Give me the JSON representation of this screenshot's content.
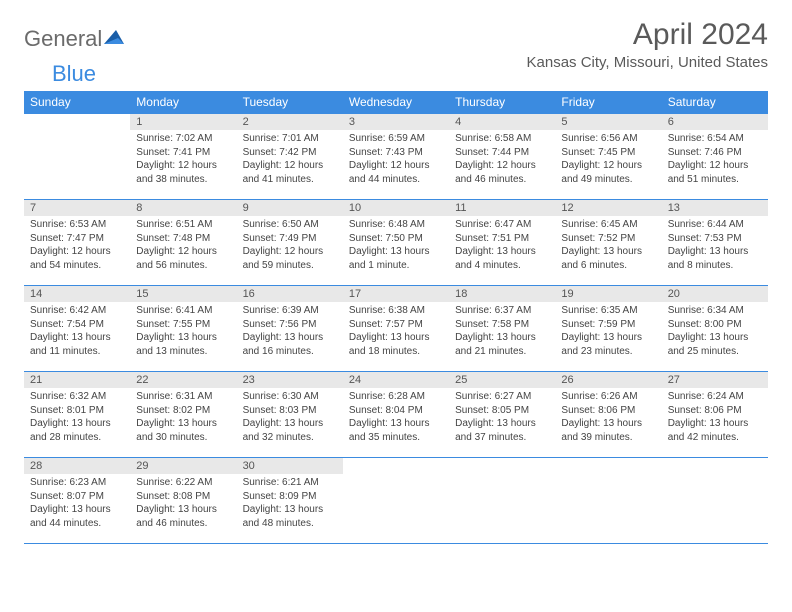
{
  "logo": {
    "text1": "General",
    "text2": "Blue"
  },
  "title": "April 2024",
  "location": "Kansas City, Missouri, United States",
  "colors": {
    "header_bg": "#3b8be0",
    "header_text": "#ffffff",
    "daynum_bg": "#e8e8e8",
    "border": "#3b8be0",
    "logo_gray": "#6b6b6b",
    "logo_blue": "#3b8be0"
  },
  "day_headers": [
    "Sunday",
    "Monday",
    "Tuesday",
    "Wednesday",
    "Thursday",
    "Friday",
    "Saturday"
  ],
  "weeks": [
    [
      null,
      {
        "n": "1",
        "sr": "7:02 AM",
        "ss": "7:41 PM",
        "dh": "12",
        "dm": "38"
      },
      {
        "n": "2",
        "sr": "7:01 AM",
        "ss": "7:42 PM",
        "dh": "12",
        "dm": "41"
      },
      {
        "n": "3",
        "sr": "6:59 AM",
        "ss": "7:43 PM",
        "dh": "12",
        "dm": "44"
      },
      {
        "n": "4",
        "sr": "6:58 AM",
        "ss": "7:44 PM",
        "dh": "12",
        "dm": "46"
      },
      {
        "n": "5",
        "sr": "6:56 AM",
        "ss": "7:45 PM",
        "dh": "12",
        "dm": "49"
      },
      {
        "n": "6",
        "sr": "6:54 AM",
        "ss": "7:46 PM",
        "dh": "12",
        "dm": "51"
      }
    ],
    [
      {
        "n": "7",
        "sr": "6:53 AM",
        "ss": "7:47 PM",
        "dh": "12",
        "dm": "54"
      },
      {
        "n": "8",
        "sr": "6:51 AM",
        "ss": "7:48 PM",
        "dh": "12",
        "dm": "56"
      },
      {
        "n": "9",
        "sr": "6:50 AM",
        "ss": "7:49 PM",
        "dh": "12",
        "dm": "59"
      },
      {
        "n": "10",
        "sr": "6:48 AM",
        "ss": "7:50 PM",
        "dh": "13",
        "dm": "1"
      },
      {
        "n": "11",
        "sr": "6:47 AM",
        "ss": "7:51 PM",
        "dh": "13",
        "dm": "4"
      },
      {
        "n": "12",
        "sr": "6:45 AM",
        "ss": "7:52 PM",
        "dh": "13",
        "dm": "6"
      },
      {
        "n": "13",
        "sr": "6:44 AM",
        "ss": "7:53 PM",
        "dh": "13",
        "dm": "8"
      }
    ],
    [
      {
        "n": "14",
        "sr": "6:42 AM",
        "ss": "7:54 PM",
        "dh": "13",
        "dm": "11"
      },
      {
        "n": "15",
        "sr": "6:41 AM",
        "ss": "7:55 PM",
        "dh": "13",
        "dm": "13"
      },
      {
        "n": "16",
        "sr": "6:39 AM",
        "ss": "7:56 PM",
        "dh": "13",
        "dm": "16"
      },
      {
        "n": "17",
        "sr": "6:38 AM",
        "ss": "7:57 PM",
        "dh": "13",
        "dm": "18"
      },
      {
        "n": "18",
        "sr": "6:37 AM",
        "ss": "7:58 PM",
        "dh": "13",
        "dm": "21"
      },
      {
        "n": "19",
        "sr": "6:35 AM",
        "ss": "7:59 PM",
        "dh": "13",
        "dm": "23"
      },
      {
        "n": "20",
        "sr": "6:34 AM",
        "ss": "8:00 PM",
        "dh": "13",
        "dm": "25"
      }
    ],
    [
      {
        "n": "21",
        "sr": "6:32 AM",
        "ss": "8:01 PM",
        "dh": "13",
        "dm": "28"
      },
      {
        "n": "22",
        "sr": "6:31 AM",
        "ss": "8:02 PM",
        "dh": "13",
        "dm": "30"
      },
      {
        "n": "23",
        "sr": "6:30 AM",
        "ss": "8:03 PM",
        "dh": "13",
        "dm": "32"
      },
      {
        "n": "24",
        "sr": "6:28 AM",
        "ss": "8:04 PM",
        "dh": "13",
        "dm": "35"
      },
      {
        "n": "25",
        "sr": "6:27 AM",
        "ss": "8:05 PM",
        "dh": "13",
        "dm": "37"
      },
      {
        "n": "26",
        "sr": "6:26 AM",
        "ss": "8:06 PM",
        "dh": "13",
        "dm": "39"
      },
      {
        "n": "27",
        "sr": "6:24 AM",
        "ss": "8:06 PM",
        "dh": "13",
        "dm": "42"
      }
    ],
    [
      {
        "n": "28",
        "sr": "6:23 AM",
        "ss": "8:07 PM",
        "dh": "13",
        "dm": "44"
      },
      {
        "n": "29",
        "sr": "6:22 AM",
        "ss": "8:08 PM",
        "dh": "13",
        "dm": "46"
      },
      {
        "n": "30",
        "sr": "6:21 AM",
        "ss": "8:09 PM",
        "dh": "13",
        "dm": "48"
      },
      null,
      null,
      null,
      null
    ]
  ],
  "labels": {
    "sunrise": "Sunrise: ",
    "sunset": "Sunset: ",
    "daylight_pre": "Daylight: ",
    "hours": " hours",
    "and": "and ",
    "minute": " minute.",
    "minutes": " minutes."
  }
}
